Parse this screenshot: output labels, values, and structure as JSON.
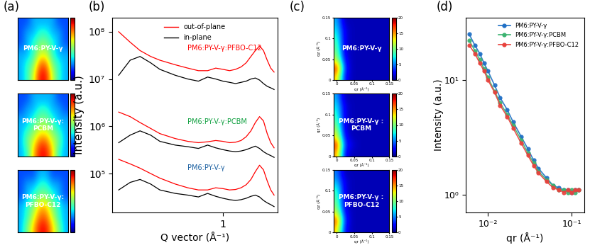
{
  "chart_data": [
    {
      "type": "heatmap",
      "title": "(a)",
      "tick_labels": false,
      "color_range": [
        0,
        10
      ],
      "panels": [
        {
          "label": "PM6:PY-V-γ",
          "cells": [
            [
              3,
              4,
              6,
              9,
              9,
              6,
              4,
              3
            ],
            [
              3,
              4,
              5,
              8,
              8,
              5,
              4,
              3
            ],
            [
              3,
              3,
              4,
              6,
              6,
              4,
              3,
              3
            ],
            [
              2,
              3,
              4,
              5,
              5,
              4,
              3,
              2
            ],
            [
              2,
              3,
              3,
              4,
              4,
              3,
              3,
              2
            ],
            [
              2,
              2,
              3,
              3,
              3,
              3,
              2,
              2
            ]
          ]
        },
        {
          "label": "PM6:PY-V-γ:\nPCBM",
          "cells": [
            [
              3,
              4,
              7,
              9,
              9,
              7,
              4,
              3
            ],
            [
              3,
              5,
              6,
              8,
              8,
              6,
              5,
              3
            ],
            [
              3,
              4,
              5,
              6,
              6,
              5,
              4,
              3
            ],
            [
              3,
              3,
              4,
              5,
              5,
              4,
              3,
              3
            ],
            [
              2,
              3,
              3,
              4,
              4,
              3,
              3,
              2
            ],
            [
              2,
              2,
              3,
              3,
              3,
              3,
              2,
              2
            ]
          ]
        },
        {
          "label": "PM6:PY-V-γ:\nPFBO-C12",
          "cells": [
            [
              3,
              5,
              7,
              9,
              9,
              7,
              5,
              3
            ],
            [
              3,
              4,
              6,
              8,
              8,
              6,
              4,
              3
            ],
            [
              3,
              4,
              5,
              7,
              7,
              5,
              4,
              3
            ],
            [
              2,
              3,
              4,
              5,
              5,
              4,
              3,
              2
            ],
            [
              2,
              3,
              3,
              4,
              4,
              3,
              3,
              2
            ],
            [
              2,
              2,
              2,
              3,
              3,
              2,
              2,
              2
            ]
          ]
        }
      ]
    },
    {
      "type": "line",
      "title": "(b)",
      "xlabel": "Q vector (Å⁻¹)",
      "ylabel": "Intensity (a.u.)",
      "log": true,
      "legend": "upper center",
      "xlim": [
        0.2,
        2.2
      ],
      "xticks": [
        1
      ],
      "ylim": [
        15000,
        200000000
      ],
      "yticks": [
        {
          "value": 100000,
          "label": "10⁵"
        },
        {
          "value": 1000000,
          "label": "10⁶"
        },
        {
          "value": 10000000,
          "label": "10⁷"
        },
        {
          "value": 100000000,
          "label": "10⁸"
        }
      ],
      "x": [
        0.22,
        0.26,
        0.3,
        0.35,
        0.4,
        0.5,
        0.6,
        0.7,
        0.8,
        0.9,
        1.0,
        1.1,
        1.2,
        1.3,
        1.4,
        1.5,
        1.6,
        1.7,
        1.8,
        1.9,
        2.0,
        2.1
      ],
      "groups": [
        {
          "label": "PM6:PY-V-γ:PFBO-C12",
          "label_color": "#ff0000",
          "series": [
            {
              "name": "out-of-plane",
              "color": "#ff0000",
              "values": [
                100000000,
                60000000,
                40000000,
                30000000,
                25000000,
                20000000,
                17000000,
                15000000,
                15000000,
                17000000,
                16000000,
                15000000,
                16000000,
                18000000,
                22000000,
                30000000,
                40000000,
                50000000,
                40000000,
                25000000,
                17000000,
                14000000
              ]
            },
            {
              "name": "in-plane",
              "color": "#000000",
              "values": [
                12000000,
                25000000,
                30000000,
                22000000,
                16000000,
                12000000,
                10000000,
                9000000,
                11000000,
                10000000,
                9000000,
                8500000,
                8000000,
                8500000,
                9000000,
                10000000,
                10500000,
                9500000,
                8000000,
                7000000,
                6500000,
                6000000
              ]
            }
          ]
        },
        {
          "label": "PM6:PY-V-γ:PCBM",
          "label_color": "#10a040",
          "series": [
            {
              "name": "out-of-plane",
              "color": "#ff0000",
              "values": [
                2000000,
                1600000,
                1200000,
                900000,
                700000,
                550000,
                480000,
                450000,
                470000,
                500000,
                480000,
                450000,
                460000,
                500000,
                600000,
                800000,
                1200000,
                1600000,
                1300000,
                700000,
                450000,
                350000
              ]
            },
            {
              "name": "in-plane",
              "color": "#000000",
              "values": [
                450000,
                650000,
                800000,
                650000,
                480000,
                400000,
                370000,
                340000,
                400000,
                350000,
                320000,
                300000,
                290000,
                300000,
                320000,
                350000,
                380000,
                340000,
                290000,
                260000,
                240000,
                220000
              ]
            }
          ]
        },
        {
          "label": "PM6:PY-V-γ",
          "label_color": "#1a5fa0",
          "series": [
            {
              "name": "out-of-plane",
              "color": "#ff0000",
              "values": [
                200000,
                160000,
                130000,
                100000,
                80000,
                60000,
                50000,
                45000,
                45000,
                50000,
                48000,
                45000,
                46000,
                50000,
                58000,
                75000,
                110000,
                150000,
                120000,
                70000,
                45000,
                35000
              ]
            },
            {
              "name": "in-plane",
              "color": "#000000",
              "values": [
                45000,
                65000,
                75000,
                60000,
                45000,
                38000,
                35000,
                32000,
                38000,
                33000,
                30000,
                28000,
                27000,
                28000,
                30000,
                33000,
                35000,
                32000,
                27000,
                24000,
                22000,
                20000
              ]
            }
          ]
        }
      ]
    },
    {
      "type": "heatmap",
      "title": "(c)",
      "xlabel": "qr (Å⁻¹)",
      "ylabel": "qz (Å⁻¹)",
      "xlim": [
        -0.01,
        0.15
      ],
      "ylim": [
        0,
        0.15
      ],
      "xticks": [
        0,
        0.05,
        0.1,
        0.15
      ],
      "yticks": [
        0,
        0.05,
        0.1,
        0.15
      ],
      "color_range": [
        0,
        20
      ],
      "color_ticks": [
        0,
        5,
        10,
        15,
        20
      ],
      "panels": [
        {
          "label": "PM6:PY-V-γ",
          "cells": [
            [
              14,
              3,
              1,
              1,
              1,
              1,
              1,
              1
            ],
            [
              18,
              4,
              1,
              1,
              1,
              1,
              1,
              1
            ],
            [
              12,
              3,
              1,
              1,
              1,
              1,
              1,
              1
            ],
            [
              10,
              2,
              1,
              1,
              1,
              1,
              1,
              1
            ],
            [
              9,
              2,
              1,
              1,
              1,
              1,
              1,
              1
            ],
            [
              8,
              2,
              1,
              1,
              1,
              1,
              1,
              1
            ],
            [
              7,
              2,
              1,
              1,
              1,
              1,
              1,
              1
            ],
            [
              6,
              1,
              1,
              1,
              1,
              1,
              1,
              1
            ]
          ]
        },
        {
          "label": "PM6:PY-V-γ :\nPCBM",
          "cells": [
            [
              15,
              3,
              1,
              1,
              1,
              1,
              1,
              1
            ],
            [
              18,
              4,
              2,
              1,
              1,
              1,
              1,
              1
            ],
            [
              13,
              3,
              1,
              1,
              1,
              1,
              1,
              1
            ],
            [
              11,
              2,
              1,
              1,
              1,
              1,
              1,
              1
            ],
            [
              9,
              2,
              1,
              1,
              1,
              1,
              1,
              1
            ],
            [
              8,
              2,
              1,
              1,
              1,
              1,
              1,
              1
            ],
            [
              7,
              2,
              1,
              1,
              1,
              1,
              1,
              1
            ],
            [
              6,
              1,
              1,
              1,
              1,
              1,
              1,
              1
            ]
          ]
        },
        {
          "label": "PM6:PY-V-γ :\nPFBO-C12",
          "cells": [
            [
              14,
              3,
              1,
              1,
              1,
              1,
              1,
              1
            ],
            [
              17,
              4,
              1,
              1,
              1,
              1,
              1,
              1
            ],
            [
              12,
              3,
              1,
              1,
              1,
              1,
              1,
              1
            ],
            [
              10,
              2,
              1,
              1,
              1,
              1,
              1,
              1
            ],
            [
              9,
              2,
              1,
              1,
              1,
              1,
              1,
              1
            ],
            [
              8,
              2,
              1,
              1,
              1,
              1,
              1,
              1
            ],
            [
              6,
              2,
              1,
              1,
              1,
              1,
              1,
              1
            ],
            [
              5,
              1,
              1,
              1,
              1,
              1,
              1,
              1
            ]
          ]
        }
      ]
    },
    {
      "type": "scatter",
      "title": "(d)",
      "xlabel": "qr (Å⁻¹)",
      "ylabel": "Intensity (a.u.)",
      "log": true,
      "legend": "upper right",
      "xlim": [
        0.0055,
        0.14
      ],
      "xticks": [
        {
          "value": 0.01,
          "label": "10⁻²"
        },
        {
          "value": 0.1,
          "label": "10⁻¹"
        }
      ],
      "ylim": [
        0.7,
        35
      ],
      "yticks": [
        {
          "value": 1,
          "label": "10⁰"
        },
        {
          "value": 10,
          "label": "10¹"
        }
      ],
      "x": [
        0.006,
        0.007,
        0.008,
        0.009,
        0.01,
        0.012,
        0.014,
        0.017,
        0.02,
        0.025,
        0.03,
        0.035,
        0.04,
        0.05,
        0.06,
        0.07,
        0.08,
        0.09,
        0.1,
        0.11,
        0.12
      ],
      "series": [
        {
          "name": "PM6:PY-V-γ",
          "color": "#1f6fc5",
          "marker": "o",
          "line_style": "solid",
          "values": [
            25,
            20,
            17,
            14,
            12,
            9,
            7,
            5.5,
            4.3,
            3.2,
            2.5,
            2.0,
            1.7,
            1.4,
            1.2,
            1.15,
            1.1,
            1.1,
            1.05,
            1.1,
            1.1
          ]
        },
        {
          "name": "PM6:PY-V-γ:PCBM",
          "color": "#3cb371",
          "marker": "o",
          "line_style": "solid",
          "values": [
            22,
            18,
            15,
            12.5,
            10.5,
            8,
            6.3,
            5,
            4,
            3,
            2.3,
            1.9,
            1.6,
            1.35,
            1.2,
            1.1,
            1.1,
            1.05,
            1.1,
            1.05,
            1.1
          ]
        },
        {
          "name": "PM6:PY-V-γ:PFBO-C12",
          "color": "#e8413c",
          "marker": "o",
          "line_style": "solid",
          "values": [
            20,
            17,
            14,
            12,
            10,
            7.8,
            6,
            4.8,
            3.8,
            2.8,
            2.2,
            1.8,
            1.55,
            1.3,
            1.15,
            1.1,
            1.05,
            1.1,
            1.05,
            1.1,
            1.1
          ]
        }
      ]
    }
  ]
}
